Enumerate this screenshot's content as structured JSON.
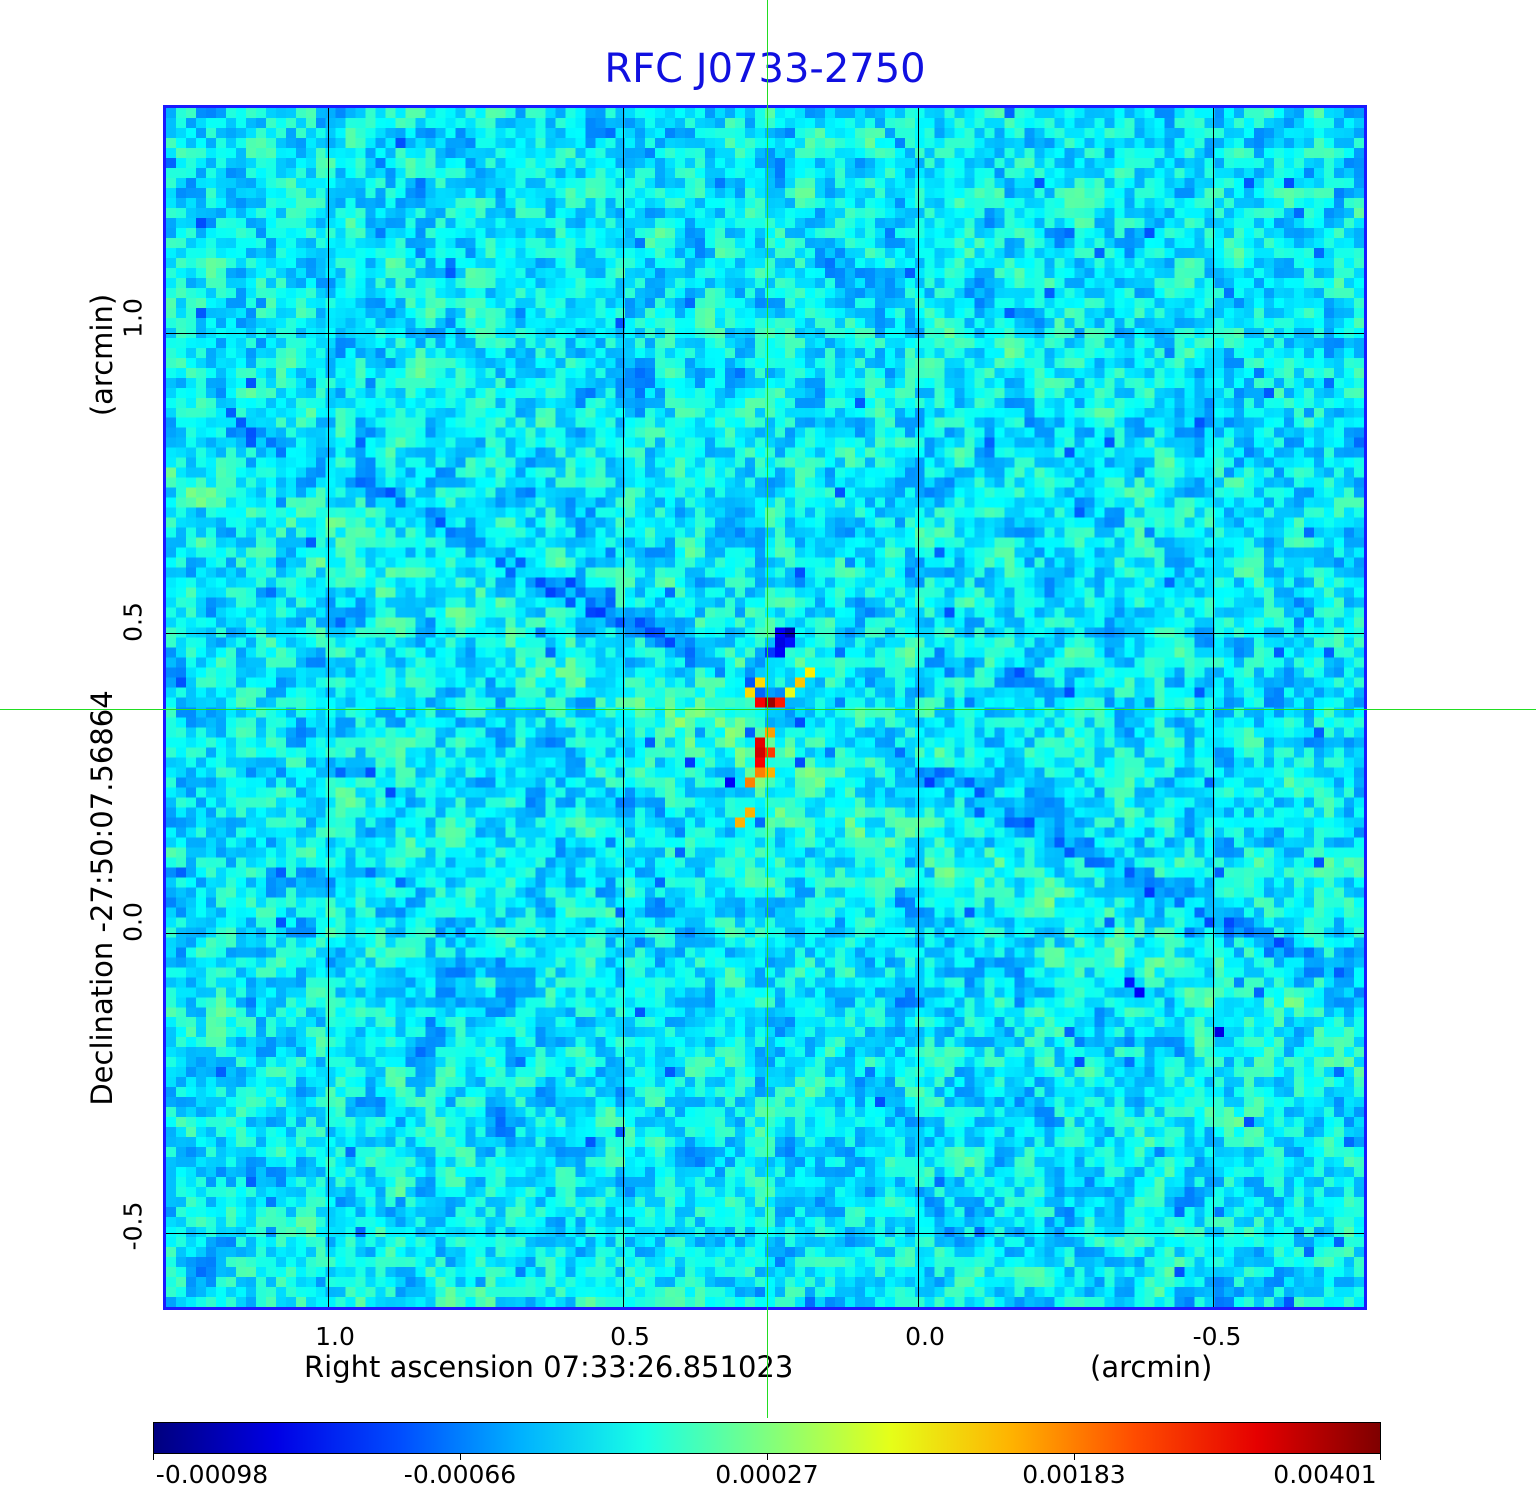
{
  "chart_data": {
    "type": "heatmap",
    "title": "RFC J0733-2750",
    "xlabel": "Right ascension  07:33:26.851023",
    "xunit": "(arcmin)",
    "ylabel": "Declination  -27:50:07.56864",
    "yunit": "(arcmin)",
    "xlim": [
      1.28,
      -0.76
    ],
    "ylim": [
      -0.63,
      1.38
    ],
    "xticks": [
      "1.0",
      "0.5",
      "0.0",
      "-0.5"
    ],
    "xtick_values": [
      1.0,
      0.5,
      0.0,
      -0.5
    ],
    "yticks": [
      "1.0",
      "0.5",
      "0.0",
      "-0.5"
    ],
    "ytick_values": [
      1.0,
      0.5,
      0.0,
      -0.5
    ],
    "grid": true,
    "crosshair": {
      "x": 0.25,
      "y": 0.37
    },
    "colormap": "jet",
    "colorbar": {
      "ticks": [
        "-0.00098",
        "-0.00066",
        "0.00027",
        "0.00183",
        "0.00401"
      ],
      "tick_values": [
        -0.00098,
        -0.00066,
        0.00027,
        0.00183,
        0.00401
      ],
      "placement": "bottom"
    },
    "source_peak": {
      "x": 0.25,
      "y": 0.37,
      "value": 0.00401
    }
  },
  "colors": {
    "title": "#1010e0",
    "frame": "#1a1aff",
    "crosshair": "#22dd22",
    "grid": "#000000"
  }
}
